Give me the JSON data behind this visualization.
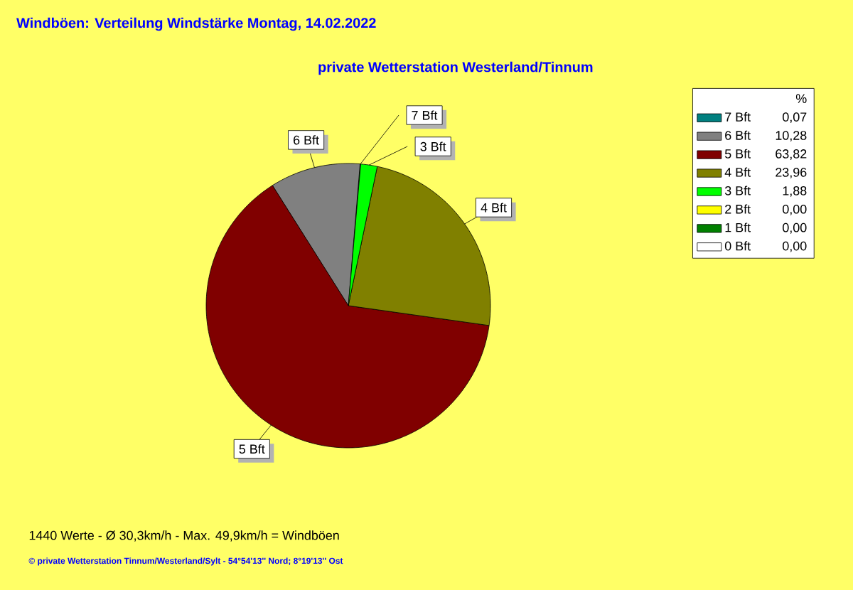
{
  "chart_data": {
    "type": "pie",
    "title": "Windböen: Verteilung Windstärke  Montag, 14.02.2022",
    "subtitle": "private Wetterstation Westerland/Tinnum",
    "categories": [
      "7 Bft",
      "6 Bft",
      "5 Bft",
      "4 Bft",
      "3 Bft",
      "2 Bft",
      "1 Bft",
      "0 Bft"
    ],
    "values": [
      0.07,
      10.28,
      63.82,
      23.96,
      1.88,
      0.0,
      0.0,
      0.0
    ],
    "value_labels": [
      "0,07",
      "10,28",
      "63,82",
      "23,96",
      "1,88",
      "0,00",
      "0,00",
      "0,00"
    ],
    "colors": [
      "#008080",
      "#808080",
      "#800000",
      "#808000",
      "#00ff00",
      "#ffff00",
      "#008000",
      "#ffffff"
    ],
    "legend": "top right",
    "legend_title": "%",
    "annotations": [
      "1440 Werte   -   Ø 30,3km/h  -  Max. 49,9km/h = Windböen",
      "© private Wetterstation Tinnum/Westerland/Sylt  -  54°54'13'' Nord; 8°19'13'' Ost"
    ]
  }
}
